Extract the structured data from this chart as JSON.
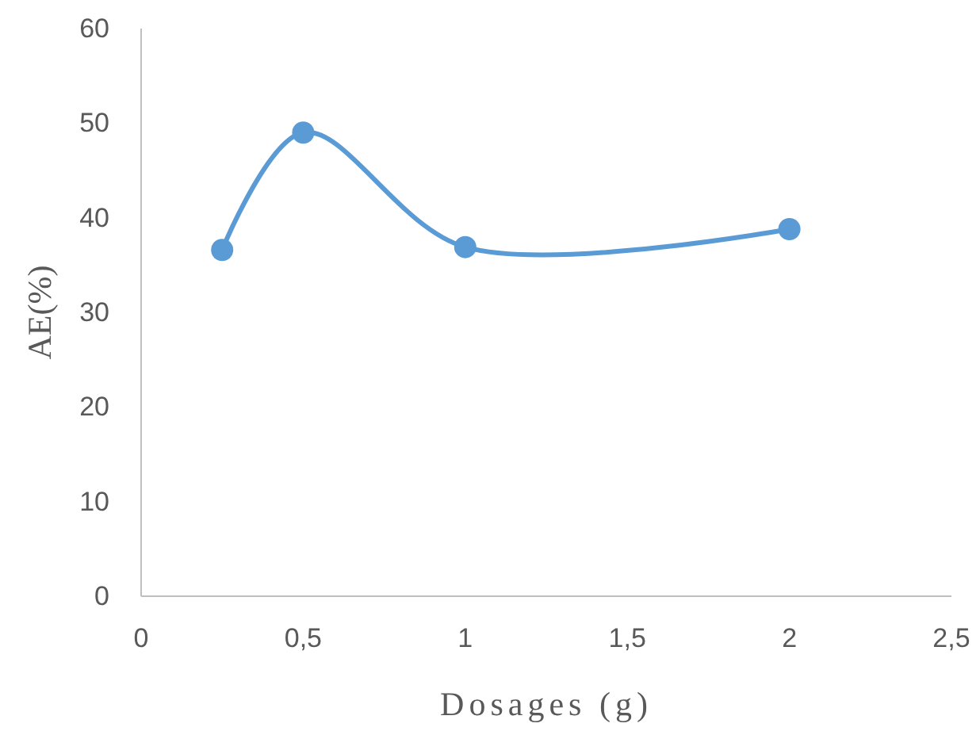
{
  "chart_data": {
    "type": "line",
    "xlabel": "Dosages (g)",
    "ylabel": "AE(%)",
    "x": [
      0.25,
      0.5,
      1,
      2
    ],
    "series": [
      {
        "color": "#5b9bd5",
        "values": [
          36.6,
          49.0,
          36.9,
          38.8
        ]
      }
    ],
    "xlim": [
      0,
      2.5
    ],
    "xticks": [
      0,
      {
        "value": 0.5,
        "label": "0,5"
      },
      1,
      {
        "value": 1.5,
        "label": "1,5"
      },
      2,
      {
        "value": 2.5,
        "label": "2,5"
      }
    ],
    "ylim": [
      0,
      60
    ],
    "yticks": [
      0,
      10,
      20,
      30,
      40,
      50,
      60
    ],
    "grid": false,
    "legend": false,
    "marker": "circle",
    "line_style": "solid"
  }
}
